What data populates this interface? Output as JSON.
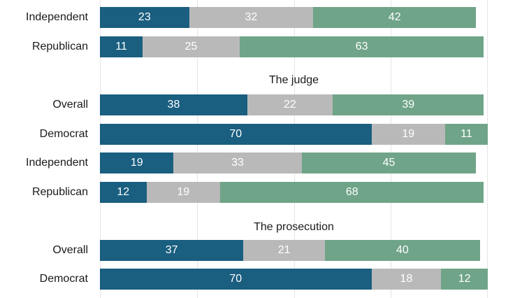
{
  "chart_data": {
    "type": "bar",
    "orientation": "horizontal",
    "stacked": true,
    "xlim": [
      0,
      100
    ],
    "grid": true,
    "colors": [
      "#1a5e80",
      "#b9b9b9",
      "#6fa488"
    ],
    "groups": [
      {
        "title": "",
        "rows": [
          {
            "label": "Independent",
            "values": [
              23,
              32,
              42
            ]
          },
          {
            "label": "Republican",
            "values": [
              11,
              25,
              63
            ]
          }
        ]
      },
      {
        "title": "The judge",
        "rows": [
          {
            "label": "Overall",
            "values": [
              38,
              22,
              39
            ]
          },
          {
            "label": "Democrat",
            "values": [
              70,
              19,
              11
            ]
          },
          {
            "label": "Independent",
            "values": [
              19,
              33,
              45
            ]
          },
          {
            "label": "Republican",
            "values": [
              12,
              19,
              68
            ]
          }
        ]
      },
      {
        "title": "The prosecution",
        "rows": [
          {
            "label": "Overall",
            "values": [
              37,
              21,
              40
            ]
          },
          {
            "label": "Democrat",
            "values": [
              70,
              18,
              12
            ]
          }
        ]
      }
    ]
  }
}
